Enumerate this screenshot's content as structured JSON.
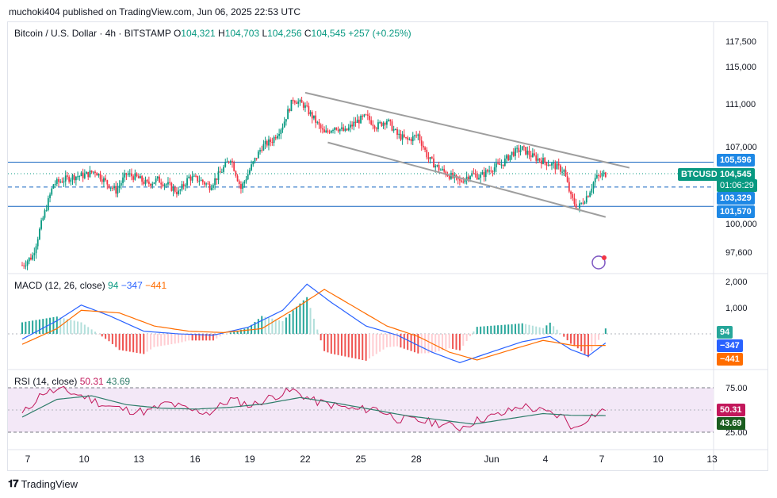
{
  "header": {
    "publisher_text": "muchoki404 published on TradingView.com, Jun 06, 2025 22:53 UTC"
  },
  "symbol": {
    "name": "Bitcoin / U.S. Dollar · 4h · BITSTAMP",
    "open_label": "O",
    "open": "104,321",
    "high_label": "H",
    "high": "104,703",
    "low_label": "L",
    "low": "104,256",
    "close_label": "C",
    "close": "104,545",
    "change": "+257 (+0.25%)"
  },
  "price_axis": {
    "ticks": [
      "117,500",
      "115,000",
      "111,000",
      "107,000",
      "100,000",
      "97,600"
    ],
    "levels": {
      "upper": "105,596",
      "mid": "103,329",
      "lower": "101,570"
    },
    "current_symbol": "BTCUSD",
    "current_price": "104,545",
    "countdown": "01:06:29"
  },
  "macd": {
    "label": "MACD (12, 26, close)",
    "hist_value": "94",
    "macd_value": "−347",
    "signal_value": "−441",
    "ticks": [
      "2,000",
      "1,000",
      "0"
    ],
    "colors": {
      "macd": "#2962ff",
      "signal": "#ff6d00",
      "hist_pos": "#26a69a",
      "hist_neg": "#ef5350"
    }
  },
  "rsi": {
    "label": "RSI (14, close)",
    "rsi_value": "50.31",
    "ma_value": "43.69",
    "ticks": [
      "75.00",
      "25.00"
    ],
    "colors": {
      "rsi": "#c2185b",
      "ma": "#2e7d6a",
      "band": "#f3e8f7"
    }
  },
  "time_axis": {
    "labels": [
      "7",
      "10",
      "13",
      "16",
      "19",
      "22",
      "25",
      "28",
      "Jun",
      "4",
      "7",
      "10",
      "13"
    ]
  },
  "footer": {
    "logo_text": "TradingView"
  },
  "chart_data": {
    "type": "candlestick",
    "title": "Bitcoin / U.S. Dollar · 4h · BITSTAMP",
    "y_ticks": [
      97600,
      100000,
      107000,
      111000,
      115000,
      117500
    ],
    "horizontal_levels": [
      105596,
      103329,
      101570
    ],
    "close_path": [
      [
        0,
        96500
      ],
      [
        6,
        97300
      ],
      [
        12,
        100500
      ],
      [
        18,
        103600
      ],
      [
        24,
        104000
      ],
      [
        30,
        104300
      ],
      [
        36,
        104400
      ],
      [
        42,
        104800
      ],
      [
        48,
        103800
      ],
      [
        54,
        103000
      ],
      [
        60,
        104500
      ],
      [
        66,
        104200
      ],
      [
        72,
        103600
      ],
      [
        78,
        104000
      ],
      [
        84,
        103500
      ],
      [
        90,
        102800
      ],
      [
        96,
        104200
      ],
      [
        102,
        104000
      ],
      [
        108,
        103400
      ],
      [
        114,
        104600
      ],
      [
        120,
        106000
      ],
      [
        126,
        103200
      ],
      [
        132,
        105200
      ],
      [
        138,
        107000
      ],
      [
        144,
        107600
      ],
      [
        150,
        109000
      ],
      [
        156,
        111500
      ],
      [
        162,
        110900
      ],
      [
        168,
        109600
      ],
      [
        174,
        108200
      ],
      [
        180,
        108900
      ],
      [
        186,
        108400
      ],
      [
        192,
        109300
      ],
      [
        198,
        109800
      ],
      [
        204,
        108900
      ],
      [
        210,
        109500
      ],
      [
        216,
        108100
      ],
      [
        222,
        107600
      ],
      [
        228,
        108100
      ],
      [
        234,
        105900
      ],
      [
        240,
        105000
      ],
      [
        246,
        104400
      ],
      [
        252,
        103800
      ],
      [
        258,
        104500
      ],
      [
        264,
        104300
      ],
      [
        270,
        105000
      ],
      [
        276,
        105400
      ],
      [
        282,
        106400
      ],
      [
        288,
        106800
      ],
      [
        294,
        106100
      ],
      [
        300,
        105700
      ],
      [
        306,
        105300
      ],
      [
        312,
        104800
      ],
      [
        316,
        102400
      ],
      [
        320,
        101400
      ],
      [
        326,
        102700
      ],
      [
        330,
        104100
      ],
      [
        336,
        104545
      ]
    ],
    "channel_upper": [
      [
        163,
        112200
      ],
      [
        336,
        105300
      ]
    ],
    "channel_lower": [
      [
        176,
        107400
      ],
      [
        336,
        100600
      ]
    ],
    "macd": {
      "macd_line": [
        [
          0,
          -200
        ],
        [
          20,
          500
        ],
        [
          34,
          1100
        ],
        [
          50,
          700
        ],
        [
          70,
          100
        ],
        [
          90,
          0
        ],
        [
          110,
          -50
        ],
        [
          130,
          250
        ],
        [
          150,
          900
        ],
        [
          164,
          1900
        ],
        [
          178,
          1200
        ],
        [
          198,
          300
        ],
        [
          216,
          -50
        ],
        [
          236,
          -700
        ],
        [
          252,
          -1100
        ],
        [
          270,
          -700
        ],
        [
          288,
          -300
        ],
        [
          304,
          -100
        ],
        [
          316,
          -600
        ],
        [
          326,
          -850
        ],
        [
          336,
          -347
        ]
      ],
      "signal_line": [
        [
          0,
          -400
        ],
        [
          20,
          200
        ],
        [
          34,
          900
        ],
        [
          56,
          800
        ],
        [
          76,
          300
        ],
        [
          96,
          100
        ],
        [
          116,
          50
        ],
        [
          138,
          200
        ],
        [
          158,
          1000
        ],
        [
          174,
          1700
        ],
        [
          192,
          1000
        ],
        [
          210,
          300
        ],
        [
          228,
          -100
        ],
        [
          246,
          -700
        ],
        [
          262,
          -1000
        ],
        [
          282,
          -600
        ],
        [
          300,
          -250
        ],
        [
          318,
          -450
        ],
        [
          336,
          -441
        ]
      ],
      "histogram_sign_pattern": "mixed"
    },
    "rsi": {
      "rsi_line": [
        [
          0,
          45
        ],
        [
          12,
          70
        ],
        [
          24,
          72
        ],
        [
          36,
          65
        ],
        [
          48,
          55
        ],
        [
          60,
          50
        ],
        [
          72,
          48
        ],
        [
          84,
          58
        ],
        [
          96,
          50
        ],
        [
          108,
          47
        ],
        [
          120,
          62
        ],
        [
          132,
          55
        ],
        [
          144,
          65
        ],
        [
          156,
          72
        ],
        [
          168,
          60
        ],
        [
          180,
          55
        ],
        [
          192,
          50
        ],
        [
          204,
          52
        ],
        [
          216,
          40
        ],
        [
          228,
          38
        ],
        [
          240,
          35
        ],
        [
          252,
          30
        ],
        [
          264,
          40
        ],
        [
          276,
          45
        ],
        [
          288,
          55
        ],
        [
          300,
          48
        ],
        [
          312,
          42
        ],
        [
          318,
          28
        ],
        [
          326,
          42
        ],
        [
          336,
          50.31
        ]
      ],
      "ma_line": [
        [
          0,
          42
        ],
        [
          20,
          62
        ],
        [
          40,
          66
        ],
        [
          60,
          56
        ],
        [
          80,
          52
        ],
        [
          100,
          51
        ],
        [
          120,
          53
        ],
        [
          140,
          57
        ],
        [
          160,
          64
        ],
        [
          180,
          58
        ],
        [
          200,
          51
        ],
        [
          220,
          44
        ],
        [
          240,
          39
        ],
        [
          260,
          34
        ],
        [
          280,
          40
        ],
        [
          300,
          46
        ],
        [
          316,
          44
        ],
        [
          336,
          43.69
        ]
      ],
      "levels": [
        75,
        25
      ]
    }
  }
}
